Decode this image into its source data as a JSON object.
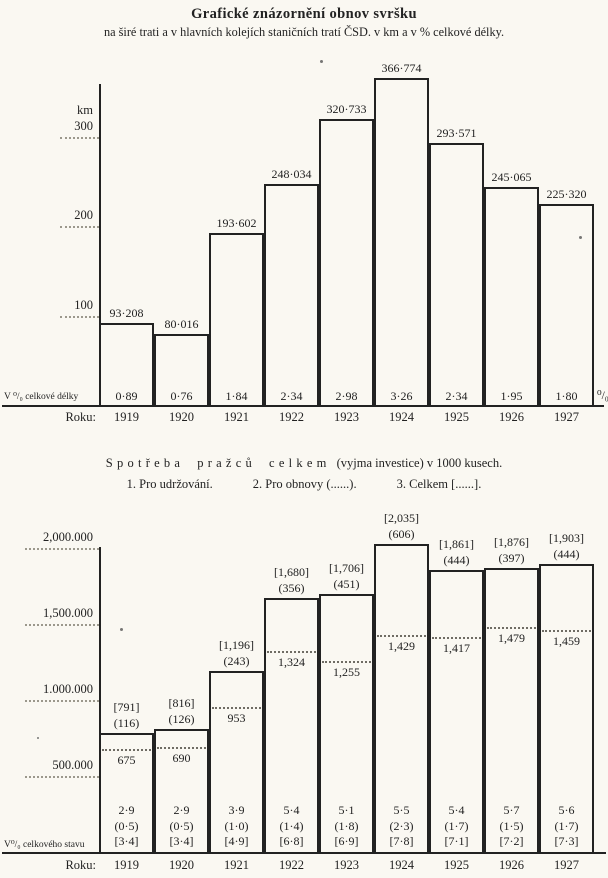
{
  "page": {
    "paper_color": "#faf8f2",
    "ink_color": "#222222"
  },
  "chart_data": [
    {
      "type": "bar",
      "title": "Grafické znázornění obnov svršku",
      "subtitle": "na širé trati a v hlavních kolejích staničních tratí ČSD. v km a v % celkové délky.",
      "ylabel": "km",
      "ylim": [
        0,
        390
      ],
      "grid": "dotted tick marks left of axis only",
      "yticks": [
        {
          "value": 100,
          "label": "100"
        },
        {
          "value": 200,
          "label": "200"
        },
        {
          "value": 300,
          "label": "300"
        }
      ],
      "categories": [
        "1919",
        "1920",
        "1921",
        "1922",
        "1923",
        "1924",
        "1925",
        "1926",
        "1927"
      ],
      "values": [
        93.208,
        80.016,
        193.602,
        248.034,
        320.733,
        366.774,
        293.571,
        245.065,
        225.32
      ],
      "value_labels": [
        "93·208",
        "80·016",
        "193·602",
        "248·034",
        "320·733",
        "366·774",
        "293·571",
        "245·065",
        "225·320"
      ],
      "percent_row_label": "V ⁰/₀ celkové délky",
      "percent_row_unit": "⁰/₀",
      "percent_values": [
        "0·89",
        "0·76",
        "1·84",
        "2·34",
        "2·98",
        "3·26",
        "2·34",
        "1·95",
        "1·80"
      ],
      "year_row_label": "Roku:"
    },
    {
      "type": "stacked-bar",
      "title": "Spotřeba pražců celkem (vyjma investice) v 1000 kusech.",
      "title_spaced": "Spotřeba pražců celkem",
      "title_rest": "(vyjma investice) v 1000 kusech.",
      "legend": [
        "1. Pro udržování.",
        "2. Pro obnovy (......).",
        "3. Celkem [......]."
      ],
      "ylim": [
        0,
        2250
      ],
      "grid": "dotted tick marks left of axis only",
      "yticks": [
        {
          "value": 500,
          "label": "500.000"
        },
        {
          "value": 1000,
          "label": "1.000.000"
        },
        {
          "value": 1500,
          "label": "1,500.000"
        },
        {
          "value": 2000,
          "label": "2,000.000"
        }
      ],
      "categories": [
        "1919",
        "1920",
        "1921",
        "1922",
        "1923",
        "1924",
        "1925",
        "1926",
        "1927"
      ],
      "series": [
        {
          "name": "Pro udržování",
          "values": [
            675,
            690,
            953,
            1324,
            1255,
            1429,
            1417,
            1479,
            1459
          ],
          "labels": [
            "675",
            "690",
            "953",
            "1,324",
            "1,255",
            "1,429",
            "1,417",
            "1,479",
            "1,459"
          ]
        },
        {
          "name": "Pro obnovy",
          "values": [
            116,
            126,
            243,
            356,
            451,
            606,
            444,
            397,
            444
          ],
          "labels": [
            "(116)",
            "(126)",
            "(243)",
            "(356)",
            "(451)",
            "(606)",
            "(444)",
            "(397)",
            "(444)"
          ]
        },
        {
          "name": "Celkem",
          "values": [
            791,
            816,
            1196,
            1680,
            1706,
            2035,
            1861,
            1876,
            1903
          ],
          "labels": [
            "[791]",
            "[816]",
            "[1,196]",
            "[1,680]",
            "[1,706]",
            "[2,035]",
            "[1,861]",
            "[1,876]",
            "[1,903]"
          ]
        }
      ],
      "percent_row_label": "V⁰/₀ celkového stavu",
      "percent_values": [
        [
          "2·9",
          "(0·5)",
          "[3·4]"
        ],
        [
          "2·9",
          "(0·5)",
          "[3·4]"
        ],
        [
          "3·9",
          "(1·0)",
          "[4·9]"
        ],
        [
          "5·4",
          "(1·4)",
          "[6·8]"
        ],
        [
          "5·1",
          "(1·8)",
          "[6·9]"
        ],
        [
          "5·5",
          "(2·3)",
          "[7·8]"
        ],
        [
          "5·4",
          "(1·7)",
          "[7·1]"
        ],
        [
          "5·7",
          "(1·5)",
          "[7·2]"
        ],
        [
          "5·6",
          "(1·7)",
          "[7·3]"
        ]
      ],
      "year_row_label": "Roku:"
    }
  ]
}
